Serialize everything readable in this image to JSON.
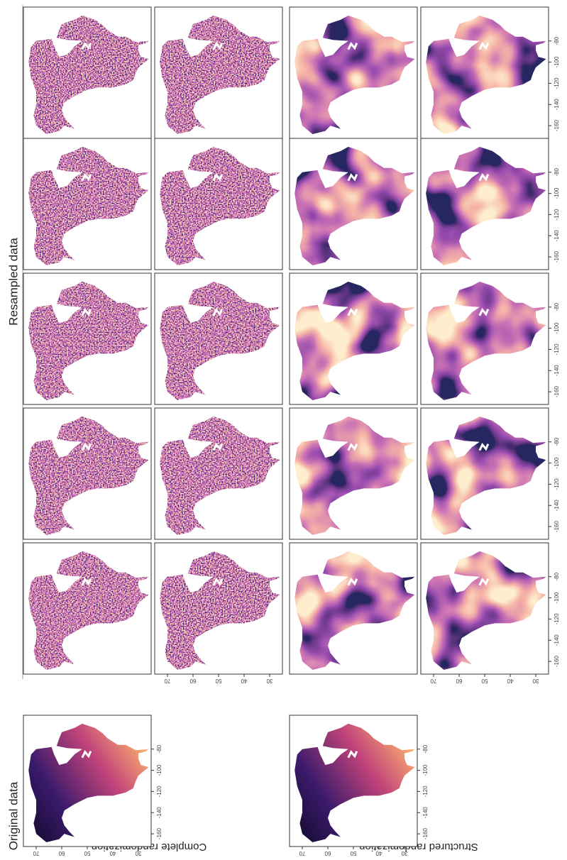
{
  "titles": {
    "original": "Original data",
    "resampled": "Resampled data"
  },
  "row_labels": [
    "Complete randomization",
    "Structured randomization"
  ],
  "lat_ticks": [
    70,
    60,
    50,
    40,
    30
  ],
  "lon_ticks": [
    -160,
    -140,
    -120,
    -100,
    -80
  ]
}
